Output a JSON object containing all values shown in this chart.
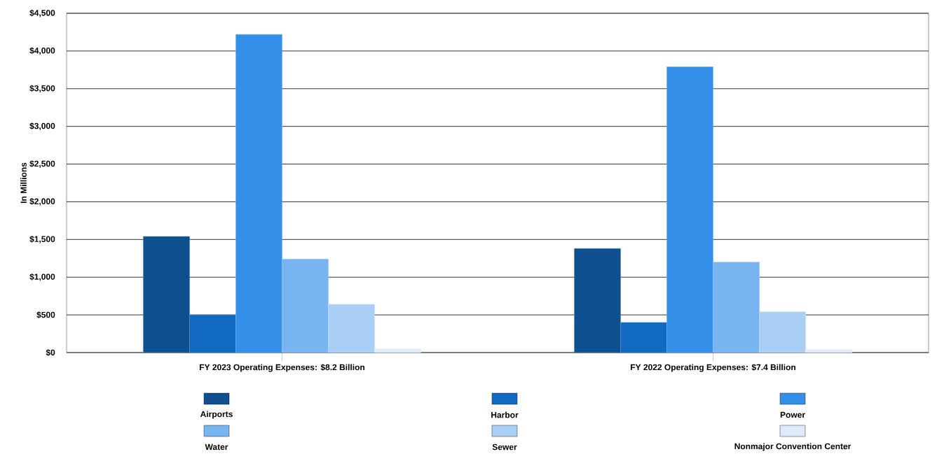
{
  "chart_data": {
    "type": "bar",
    "ylabel": "In Millions",
    "categories": [
      "FY 2023 Operating Expenses: $8.2 Billion",
      "FY 2022 Operating Expenses: $7.4 Billion"
    ],
    "series": [
      {
        "name": "Airports",
        "color": "#0d4f8f",
        "values": [
          1540,
          1380
        ]
      },
      {
        "name": "Harbor",
        "color": "#1169c2",
        "values": [
          500,
          400
        ]
      },
      {
        "name": "Power",
        "color": "#348fe9",
        "values": [
          4220,
          3790
        ]
      },
      {
        "name": "Water",
        "color": "#78b4f0",
        "values": [
          1240,
          1200
        ]
      },
      {
        "name": "Sewer",
        "color": "#a9cff6",
        "values": [
          640,
          540
        ]
      },
      {
        "name": "Nonmajor Convention Center",
        "color": "#ddebfb",
        "values": [
          50,
          40
        ]
      }
    ],
    "ylim": [
      0,
      4500
    ],
    "yticks": [
      {
        "value": 0,
        "label": "$0"
      },
      {
        "value": 500,
        "label": "$500"
      },
      {
        "value": 1000,
        "label": "$1,000"
      },
      {
        "value": 1500,
        "label": "$1,500"
      },
      {
        "value": 2000,
        "label": "$2,000"
      },
      {
        "value": 2500,
        "label": "$2,500"
      },
      {
        "value": 3000,
        "label": "$3,000"
      },
      {
        "value": 3500,
        "label": "$3,500"
      },
      {
        "value": 4000,
        "label": "$4,000"
      },
      {
        "value": 4500,
        "label": "$4,500"
      }
    ],
    "grid": "y",
    "legend": "bottom"
  }
}
